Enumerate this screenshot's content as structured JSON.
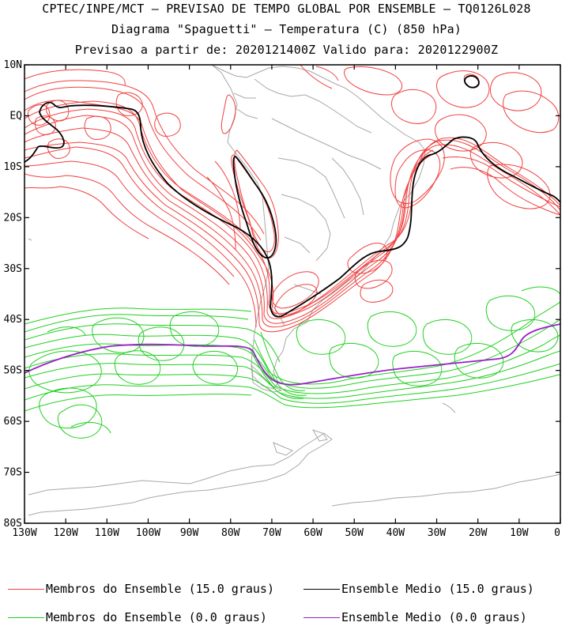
{
  "header": {
    "line1": "CPTEC/INPE/MCT – PREVISAO DE TEMPO GLOBAL POR ENSEMBLE – TQ0126L028",
    "line2": "Diagrama \"Spaguetti\" – Temperatura (C) (850 hPa)",
    "line3": "Previsao a partir de: 2020121400Z  Valido para: 2020122900Z"
  },
  "map": {
    "lat_labels": [
      "10N",
      "EQ",
      "10S",
      "20S",
      "30S",
      "40S",
      "50S",
      "60S",
      "70S",
      "80S"
    ],
    "lon_labels": [
      "130W",
      "120W",
      "110W",
      "100W",
      "90W",
      "80W",
      "70W",
      "60W",
      "50W",
      "40W",
      "30W",
      "20W",
      "10W",
      "0"
    ],
    "lat_range": [
      -80,
      10
    ],
    "lon_range": [
      -130,
      0
    ],
    "colors": {
      "members_15": "#f04040",
      "mean_15": "#000000",
      "members_0": "#20d020",
      "mean_0": "#9a20c8",
      "coast": "#a8a8a8"
    }
  },
  "legend": {
    "members_15": "Membros do Ensemble (15.0 graus)",
    "mean_15": "Ensemble Medio (15.0 graus)",
    "members_0": "Membros do Ensemble (0.0 graus)",
    "mean_0": "Ensemble Medio (0.0 graus)"
  }
}
